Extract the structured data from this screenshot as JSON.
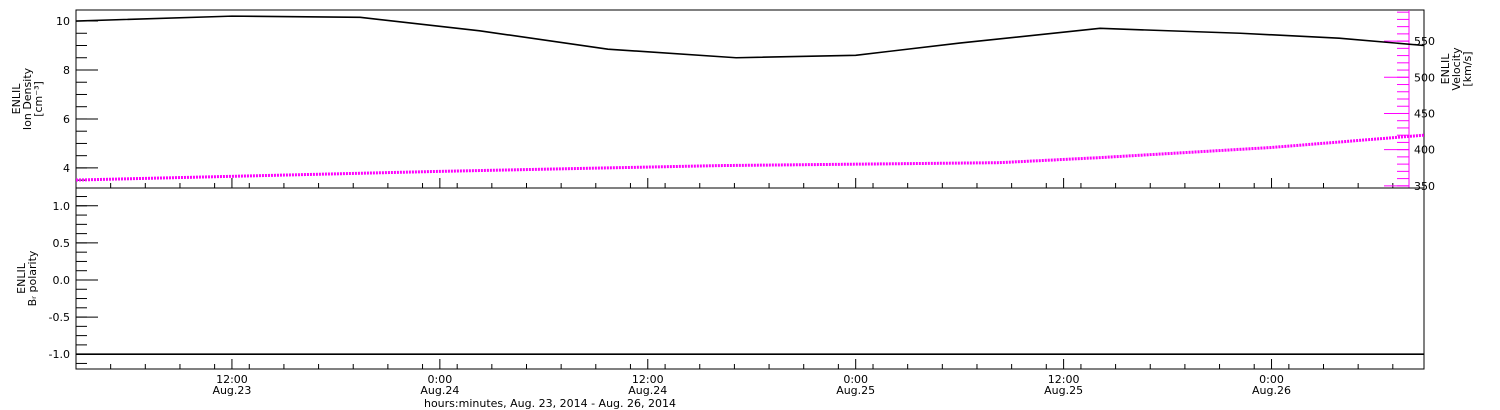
{
  "chart_data": [
    {
      "type": "line",
      "xlim": [
        3,
        80.8
      ],
      "xticks": [
        12,
        24,
        36,
        48,
        60,
        72
      ],
      "ylim": [
        3.18,
        10.45
      ],
      "yticks": [
        4,
        6,
        8,
        10
      ],
      "y2lim": [
        347,
        593
      ],
      "y2ticks": [
        350,
        400,
        450,
        500,
        550
      ],
      "ylabel": [
        "ENLIL",
        "Ion Density",
        "[cm⁻³]"
      ],
      "y2label": [
        "ENLIL",
        "Velocity",
        "[km/s]"
      ],
      "y2color": "#ff00ff",
      "series": [
        {
          "color": "#000000",
          "x": [
            3,
            12,
            19.4,
            26.3,
            33.7,
            41.1,
            48,
            54,
            62.1,
            70.2,
            75.9,
            80.8
          ],
          "values": [
            10.0,
            10.2,
            10.15,
            9.6,
            8.85,
            8.5,
            8.6,
            9.1,
            9.7,
            9.5,
            9.3,
            9.0
          ]
        },
        {
          "color": "#ff00ff",
          "axis": "y2",
          "x": [
            3,
            24,
            40.2,
            56.3,
            62.1,
            72,
            80.8
          ],
          "values": [
            358,
            370,
            378,
            382,
            389,
            403,
            420
          ]
        }
      ]
    },
    {
      "type": "line",
      "xlim": [
        3,
        80.8
      ],
      "xticks": [
        {
          "value": 12,
          "label": "12:00\nAug.23"
        },
        {
          "value": 24,
          "label": "0:00\nAug.24"
        },
        {
          "value": 36,
          "label": "12:00\nAug.24"
        },
        {
          "value": 48,
          "label": "0:00\nAug.25"
        },
        {
          "value": 60,
          "label": "12:00\nAug.25"
        },
        {
          "value": 72,
          "label": "0:00\nAug.26"
        }
      ],
      "xlabel": "hours:minutes, Aug. 23, 2014 - Aug. 26, 2014",
      "ylim": [
        -1.2,
        1.24
      ],
      "yticks": [
        {
          "value": -1,
          "label": "-1.0"
        },
        {
          "value": -0.5,
          "label": "-0.5"
        },
        {
          "value": 0,
          "label": "0.0"
        },
        {
          "value": 0.5,
          "label": "0.5"
        },
        {
          "value": 1,
          "label": "1.0"
        }
      ],
      "ylabel": [
        "ENLIL",
        "Bᵣ polarity"
      ],
      "series": [
        {
          "color": "#000000",
          "x": [
            3,
            80.8
          ],
          "values": [
            -1,
            -1
          ]
        }
      ]
    }
  ]
}
